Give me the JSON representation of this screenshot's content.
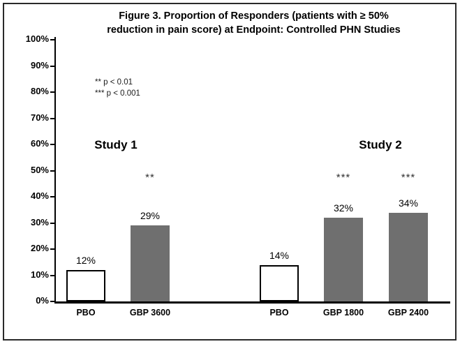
{
  "figure": {
    "title_line1": "Figure 3. Proportion of Responders (patients with ≥ 50%",
    "title_line2": "reduction in pain score) at Endpoint: Controlled PHN Studies"
  },
  "notes": {
    "p1": "** p < 0.01",
    "p2": "*** p < 0.001"
  },
  "chart_data": {
    "type": "bar",
    "title": "Figure 3. Proportion of Responders (patients with ≥ 50% reduction in pain score) at Endpoint: Controlled PHN Studies",
    "xlabel": "",
    "ylabel": "",
    "ylim": [
      0,
      100
    ],
    "ytick_step": 10,
    "yticks": [
      "0%",
      "10%",
      "20%",
      "30%",
      "40%",
      "50%",
      "60%",
      "70%",
      "80%",
      "90%",
      "100%"
    ],
    "grid": false,
    "legend": "none",
    "categories": [
      "PBO",
      "GBP 3600",
      "PBO",
      "GBP 1800",
      "GBP 2400"
    ],
    "values": [
      12,
      29,
      14,
      32,
      34
    ],
    "labels": [
      "12%",
      "29%",
      "14%",
      "32%",
      "34%"
    ],
    "significance": [
      "",
      "**",
      "",
      "***",
      "***"
    ],
    "bar_fill": [
      "#ffffff",
      "#6f6f6f",
      "#ffffff",
      "#6f6f6f",
      "#6f6f6f"
    ],
    "groups": [
      {
        "name": "Study  1",
        "bars": [
          "PBO",
          "GBP 3600"
        ]
      },
      {
        "name": "Study 2",
        "bars": [
          "PBO",
          "GBP 1800",
          "GBP 2400"
        ]
      }
    ],
    "annotations": [
      "** p < 0.01",
      "*** p < 0.001"
    ]
  },
  "colors": {
    "gray_bar": "#6f6f6f",
    "axis": "#000000",
    "frame_border": "#2a2a2a",
    "significance": "#333333"
  }
}
